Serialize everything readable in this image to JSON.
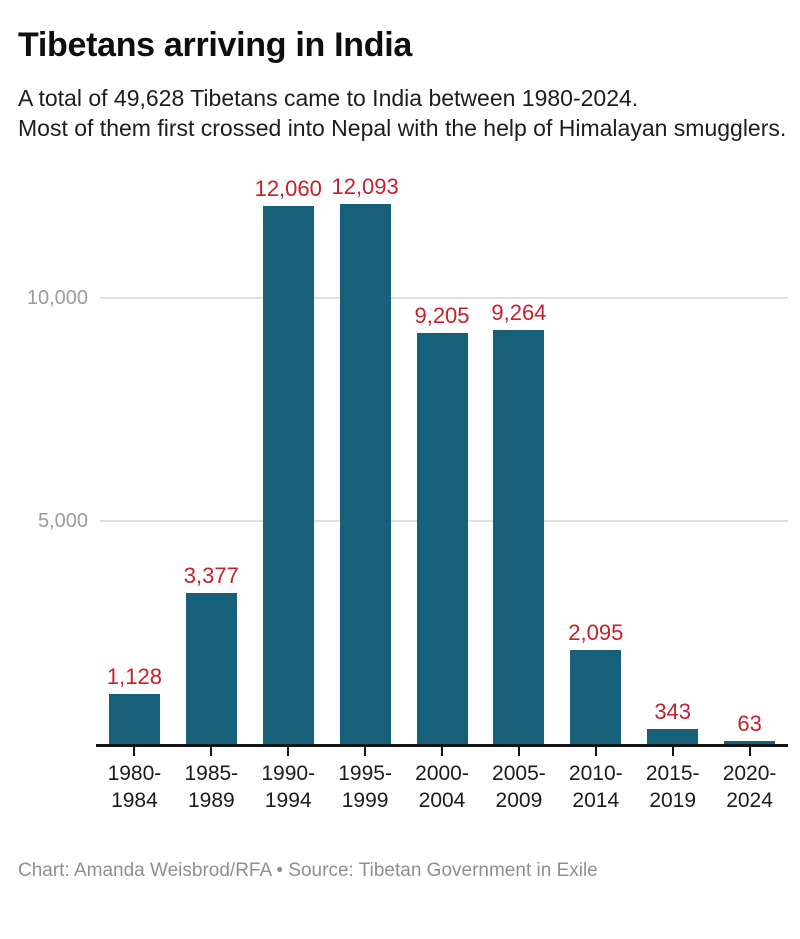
{
  "header": {
    "title": "Tibetans arriving in India",
    "subtitle": "A total of 49,628 Tibetans came to India between 1980-2024.\nMost of them first crossed into Nepal with the help of Himalayan smugglers."
  },
  "chart_data": {
    "type": "bar",
    "title": "Tibetans arriving in India",
    "categories": [
      "1980-1984",
      "1985-1989",
      "1990-1994",
      "1995-1999",
      "2000-2004",
      "2005-2009",
      "2010-2014",
      "2015-2019",
      "2020-2024"
    ],
    "values": [
      1128,
      3377,
      12060,
      12093,
      9205,
      9264,
      2095,
      343,
      63
    ],
    "value_labels": [
      "1,128",
      "3,377",
      "12,060",
      "12,093",
      "9,205",
      "9,264",
      "2,095",
      "343",
      "63"
    ],
    "total_note": "49,628 total between 1980-2024",
    "xlabel": "",
    "ylabel": "",
    "ylim": [
      0,
      12500
    ],
    "yticks": [
      {
        "value": 5000,
        "label": "5,000"
      },
      {
        "value": 10000,
        "label": "10,000"
      }
    ],
    "grid": "horizontal",
    "legend": "none",
    "bar_color": "#16607a",
    "value_label_color": "#c4212a",
    "axis_color": "#161616",
    "gridline_color": "#e0e0e0",
    "ytick_label_color": "#9b9b9b"
  },
  "footer": {
    "credit": "Chart: Amanda Weisbrod/RFA • Source: Tibetan Government in Exile"
  }
}
